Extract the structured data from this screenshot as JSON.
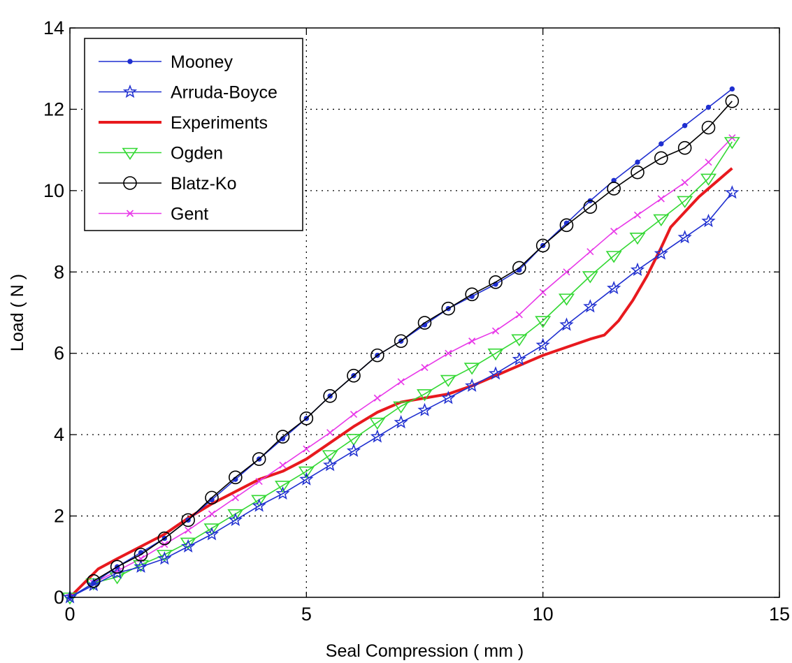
{
  "chart_data": {
    "type": "line",
    "title": "",
    "xlabel": "Seal Compression ( mm )",
    "ylabel": "Load ( N )",
    "xlim": [
      0,
      15
    ],
    "ylim": [
      0,
      14
    ],
    "xticks": [
      0,
      5,
      10,
      15
    ],
    "yticks": [
      0,
      2,
      4,
      6,
      8,
      10,
      12,
      14
    ],
    "xtick_labels": [
      "0",
      "5",
      "10",
      "15"
    ],
    "ytick_labels": [
      "0",
      "2",
      "4",
      "6",
      "8",
      "10",
      "12",
      "14"
    ],
    "grid": "dotted",
    "legend_position": "top-left",
    "series": [
      {
        "name": "Mooney",
        "color": "#1f2fd0",
        "marker": "dot",
        "x": [
          0,
          0.5,
          1,
          1.5,
          2,
          2.5,
          3,
          3.5,
          4,
          4.5,
          5,
          5.5,
          6,
          6.5,
          7,
          7.5,
          8,
          8.5,
          9,
          9.5,
          10,
          10.5,
          11,
          11.5,
          12,
          12.5,
          13,
          13.5,
          14
        ],
        "y": [
          0,
          0.35,
          0.75,
          1.1,
          1.45,
          1.9,
          2.4,
          2.9,
          3.4,
          3.9,
          4.4,
          4.95,
          5.45,
          5.95,
          6.3,
          6.7,
          7.1,
          7.4,
          7.7,
          8.05,
          8.65,
          9.2,
          9.75,
          10.25,
          10.7,
          11.15,
          11.6,
          12.05,
          12.5
        ]
      },
      {
        "name": "Arruda-Boyce",
        "color": "#1f2fd0",
        "marker": "star",
        "x": [
          0,
          0.5,
          1,
          1.5,
          2,
          2.5,
          3,
          3.5,
          4,
          4.5,
          5,
          5.5,
          6,
          6.5,
          7,
          7.5,
          8,
          8.5,
          9,
          9.5,
          10,
          10.5,
          11,
          11.5,
          12,
          12.5,
          13,
          13.5,
          14
        ],
        "y": [
          0,
          0.3,
          0.6,
          0.75,
          0.95,
          1.25,
          1.55,
          1.9,
          2.25,
          2.55,
          2.9,
          3.25,
          3.6,
          3.95,
          4.3,
          4.6,
          4.9,
          5.2,
          5.5,
          5.85,
          6.2,
          6.7,
          7.15,
          7.6,
          8.05,
          8.45,
          8.85,
          9.25,
          9.95
        ]
      },
      {
        "name": "Experiments",
        "color": "#e8191e",
        "marker": "none",
        "x": [
          0,
          0.3,
          0.6,
          1,
          1.5,
          2,
          2.5,
          3,
          3.5,
          4,
          4.5,
          5,
          5.5,
          6,
          6.5,
          7,
          7.5,
          8,
          8.5,
          9,
          9.5,
          10,
          10.5,
          11,
          11.3,
          11.6,
          11.9,
          12.2,
          12.5,
          12.7,
          12.9,
          13.1,
          13.3,
          13.5,
          13.7,
          13.9,
          14
        ],
        "y": [
          0,
          0.35,
          0.7,
          0.95,
          1.25,
          1.55,
          1.95,
          2.3,
          2.6,
          2.9,
          3.1,
          3.4,
          3.8,
          4.2,
          4.55,
          4.8,
          4.9,
          5.0,
          5.2,
          5.45,
          5.7,
          5.95,
          6.15,
          6.35,
          6.45,
          6.8,
          7.3,
          7.9,
          8.6,
          9.1,
          9.35,
          9.6,
          9.85,
          10.05,
          10.25,
          10.45,
          10.55
        ]
      },
      {
        "name": "Ogden",
        "color": "#33d833",
        "marker": "triangle-down",
        "x": [
          0,
          0.5,
          1,
          1.5,
          2,
          2.5,
          3,
          3.5,
          4,
          4.5,
          5,
          5.5,
          6,
          6.5,
          7,
          7.5,
          8,
          8.5,
          9,
          9.5,
          10,
          10.5,
          11,
          11.5,
          12,
          12.5,
          13,
          13.5,
          14
        ],
        "y": [
          0,
          0.35,
          0.5,
          0.8,
          1.05,
          1.35,
          1.7,
          2.05,
          2.4,
          2.75,
          3.1,
          3.5,
          3.9,
          4.3,
          4.7,
          5.0,
          5.35,
          5.65,
          6.0,
          6.35,
          6.8,
          7.35,
          7.9,
          8.4,
          8.85,
          9.3,
          9.75,
          10.3,
          11.2
        ]
      },
      {
        "name": "Blatz-Ko",
        "color": "#000000",
        "marker": "circle",
        "x": [
          0.5,
          1,
          1.5,
          2,
          2.5,
          3,
          3.5,
          4,
          4.5,
          5,
          5.5,
          6,
          6.5,
          7,
          7.5,
          8,
          8.5,
          9,
          9.5,
          10,
          10.5,
          11,
          11.5,
          12,
          12.5,
          13,
          13.5,
          14
        ],
        "y": [
          0.4,
          0.75,
          1.05,
          1.45,
          1.9,
          2.45,
          2.95,
          3.4,
          3.95,
          4.4,
          4.95,
          5.45,
          5.95,
          6.3,
          6.75,
          7.1,
          7.45,
          7.75,
          8.1,
          8.65,
          9.15,
          9.6,
          10.05,
          10.45,
          10.8,
          11.05,
          11.55,
          12.2
        ]
      },
      {
        "name": "Gent",
        "color": "#e838e8",
        "marker": "x",
        "x": [
          0,
          0.5,
          1,
          1.5,
          2,
          2.5,
          3,
          3.5,
          4,
          4.5,
          5,
          5.5,
          6,
          6.5,
          7,
          7.5,
          8,
          8.5,
          9,
          9.5,
          10,
          10.5,
          11,
          11.5,
          12,
          12.5,
          13,
          13.5,
          14
        ],
        "y": [
          0,
          0.35,
          0.65,
          0.95,
          1.3,
          1.65,
          2.05,
          2.45,
          2.85,
          3.25,
          3.65,
          4.05,
          4.5,
          4.9,
          5.3,
          5.65,
          6.0,
          6.3,
          6.55,
          6.95,
          7.5,
          8.0,
          8.5,
          9.0,
          9.4,
          9.8,
          10.2,
          10.7,
          11.3
        ]
      }
    ]
  }
}
